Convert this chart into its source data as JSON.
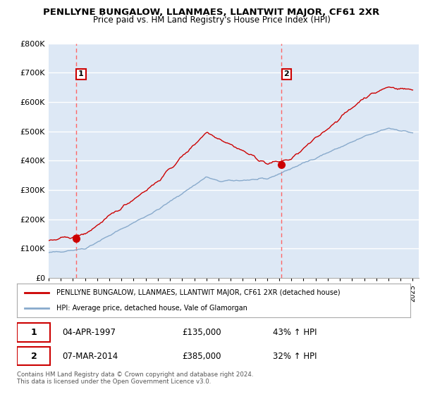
{
  "title": "PENLLYNE BUNGALOW, LLANMAES, LLANTWIT MAJOR, CF61 2XR",
  "subtitle": "Price paid vs. HM Land Registry's House Price Index (HPI)",
  "legend_line1": "PENLLYNE BUNGALOW, LLANMAES, LLANTWIT MAJOR, CF61 2XR (detached house)",
  "legend_line2": "HPI: Average price, detached house, Vale of Glamorgan",
  "transaction1_date": "04-APR-1997",
  "transaction1_price": "£135,000",
  "transaction1_hpi": "43% ↑ HPI",
  "transaction2_date": "07-MAR-2014",
  "transaction2_price": "£385,000",
  "transaction2_hpi": "32% ↑ HPI",
  "footer": "Contains HM Land Registry data © Crown copyright and database right 2024.\nThis data is licensed under the Open Government Licence v3.0.",
  "background_color": "#dde8f5",
  "grid_color": "#ffffff",
  "red_line_color": "#cc0000",
  "blue_line_color": "#88aacc",
  "dashed_line_color": "#ff6666",
  "marker_color": "#cc0000",
  "annotation_box_color": "#cc0000",
  "ylim": [
    0,
    800000
  ],
  "yticks": [
    0,
    100000,
    200000,
    300000,
    400000,
    500000,
    600000,
    700000,
    800000
  ],
  "ytick_labels": [
    "£0",
    "£100K",
    "£200K",
    "£300K",
    "£400K",
    "£500K",
    "£600K",
    "£700K",
    "£800K"
  ],
  "year_start": 1995,
  "year_end": 2025,
  "transaction1_year": 1997.25,
  "transaction1_value": 135000,
  "transaction2_year": 2014.18,
  "transaction2_value": 385000
}
